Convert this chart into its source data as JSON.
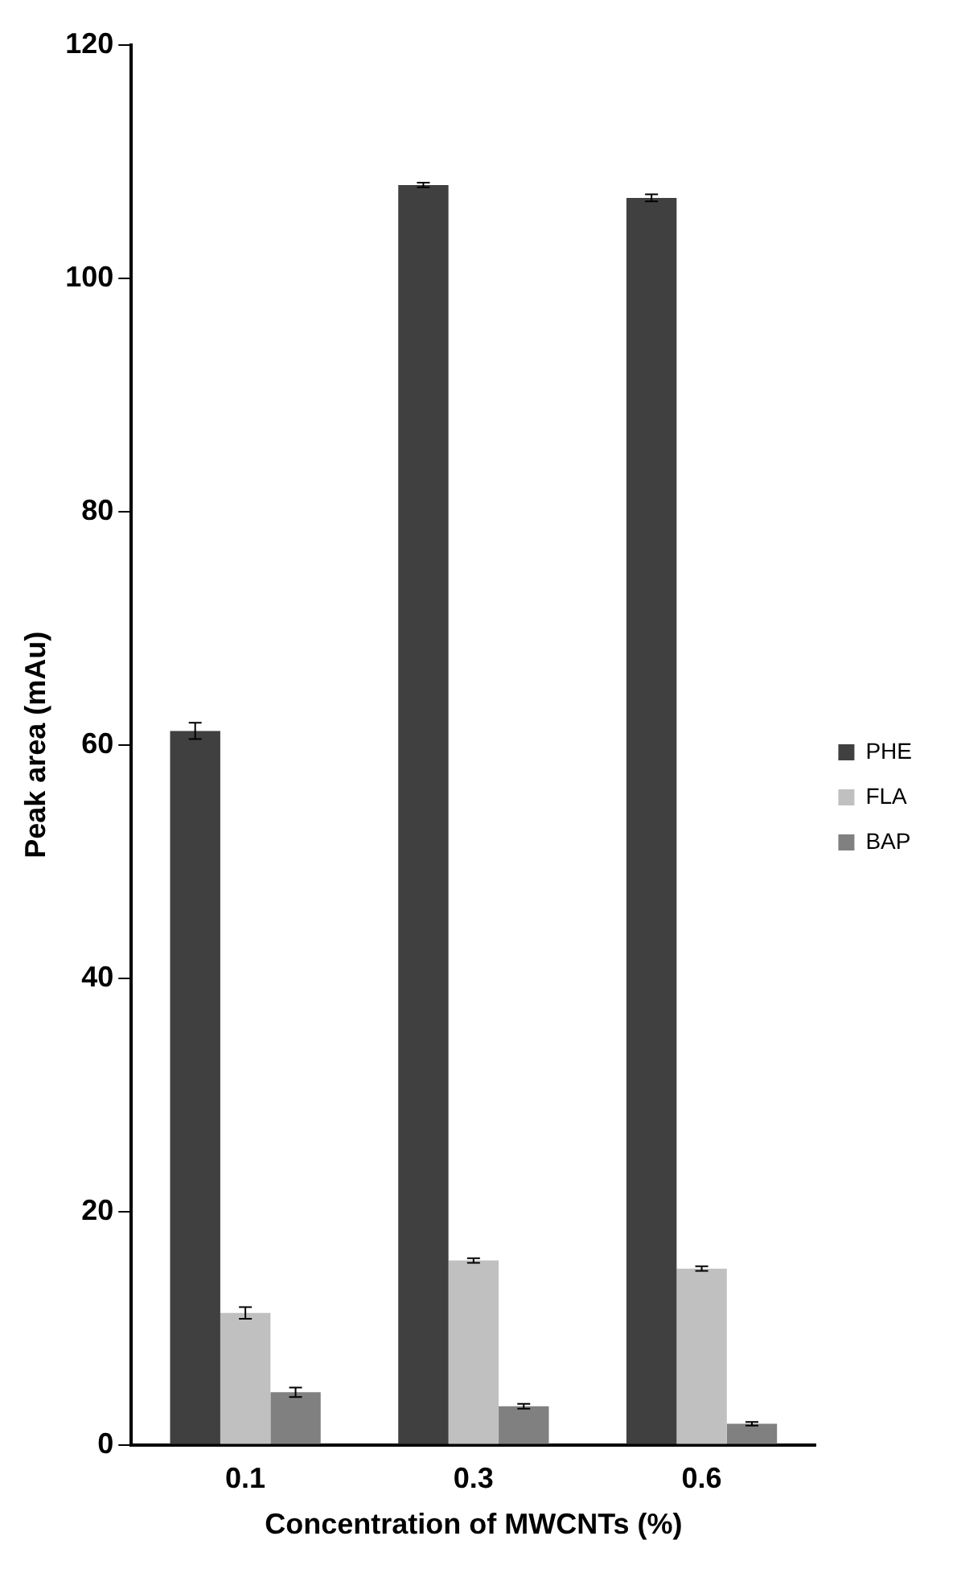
{
  "chart_data": {
    "type": "bar",
    "xlabel": "Concentration of MWCNTs (%)",
    "ylabel": "Peak area (mAu)",
    "categories": [
      "0.1",
      "0.3",
      "0.6"
    ],
    "series": [
      {
        "name": "PHE",
        "color": "#404040",
        "values": [
          61.2,
          108,
          106.9
        ],
        "errors": [
          0.7,
          0.2,
          0.3
        ]
      },
      {
        "name": "FLA",
        "color": "#c0c0c0",
        "values": [
          11.3,
          15.8,
          15.1
        ],
        "errors": [
          0.5,
          0.2,
          0.2
        ]
      },
      {
        "name": "BAP",
        "color": "#808080",
        "values": [
          4.5,
          3.3,
          1.8
        ],
        "errors": [
          0.4,
          0.2,
          0.15
        ]
      }
    ],
    "ylim": [
      0,
      120
    ],
    "yticks": [
      0,
      20,
      40,
      60,
      80,
      100,
      120
    ],
    "grid": false,
    "legend": "right"
  }
}
